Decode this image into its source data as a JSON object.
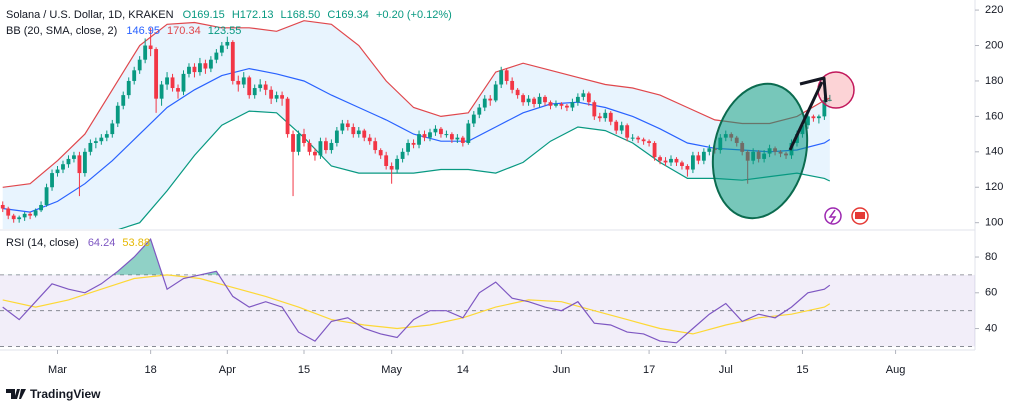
{
  "chart_data": {
    "type": "candlestick",
    "title": "Solana / U.S. Dollar, 1D, KRAKEN",
    "legend": {
      "open": "O169.15",
      "high": "H172.13",
      "low": "L168.50",
      "close": "C169.34",
      "change": "+0.20 (+0.12%)"
    },
    "up_color": "#089981",
    "down_color": "#f23645",
    "xlim": [
      -0.5,
      177.5
    ],
    "ylim": [
      97,
      224
    ],
    "yticks": [
      100,
      120,
      140,
      160,
      180,
      200,
      220
    ],
    "xticks": [
      {
        "value": 10,
        "label": "Mar"
      },
      {
        "value": 27,
        "label": "18"
      },
      {
        "value": 41,
        "label": "Apr"
      },
      {
        "value": 55,
        "label": "15"
      },
      {
        "value": 71,
        "label": "May"
      },
      {
        "value": 84,
        "label": "14"
      },
      {
        "value": 102,
        "label": "Jun"
      },
      {
        "value": 118,
        "label": "17"
      },
      {
        "value": 132,
        "label": "Jul"
      },
      {
        "value": 146,
        "label": "15"
      },
      {
        "value": 163,
        "label": "Aug"
      }
    ],
    "ohlc": [
      [
        110,
        112,
        106,
        108
      ],
      [
        108,
        109,
        102,
        104
      ],
      [
        104,
        105,
        100,
        102
      ],
      [
        102,
        104,
        100,
        103
      ],
      [
        103,
        106,
        101,
        105
      ],
      [
        105,
        106,
        102,
        104
      ],
      [
        104,
        108,
        103,
        107
      ],
      [
        107,
        112,
        106,
        110
      ],
      [
        110,
        122,
        109,
        120
      ],
      [
        120,
        130,
        118,
        128
      ],
      [
        128,
        132,
        126,
        130
      ],
      [
        130,
        135,
        128,
        133
      ],
      [
        133,
        138,
        131,
        136
      ],
      [
        136,
        140,
        134,
        138
      ],
      [
        138,
        140,
        115,
        128
      ],
      [
        128,
        142,
        126,
        140
      ],
      [
        140,
        147,
        138,
        145
      ],
      [
        145,
        148,
        142,
        146
      ],
      [
        146,
        150,
        144,
        148
      ],
      [
        148,
        152,
        146,
        150
      ],
      [
        150,
        158,
        148,
        156
      ],
      [
        156,
        168,
        154,
        166
      ],
      [
        166,
        174,
        164,
        172
      ],
      [
        172,
        182,
        170,
        180
      ],
      [
        180,
        188,
        178,
        186
      ],
      [
        186,
        194,
        184,
        192
      ],
      [
        192,
        204,
        190,
        200
      ],
      [
        200,
        210,
        194,
        198
      ],
      [
        198,
        199,
        162,
        170
      ],
      [
        170,
        180,
        166,
        178
      ],
      [
        178,
        185,
        175,
        182
      ],
      [
        182,
        184,
        174,
        176
      ],
      [
        176,
        178,
        170,
        174
      ],
      [
        174,
        186,
        172,
        184
      ],
      [
        184,
        190,
        182,
        188
      ],
      [
        188,
        190,
        182,
        185
      ],
      [
        185,
        193,
        183,
        190
      ],
      [
        190,
        192,
        184,
        187
      ],
      [
        187,
        194,
        185,
        192
      ],
      [
        192,
        198,
        190,
        196
      ],
      [
        196,
        202,
        194,
        200
      ],
      [
        200,
        205,
        198,
        202
      ],
      [
        202,
        203,
        178,
        180
      ],
      [
        180,
        183,
        174,
        178
      ],
      [
        178,
        185,
        176,
        182
      ],
      [
        182,
        183,
        170,
        172
      ],
      [
        172,
        178,
        170,
        176
      ],
      [
        176,
        181,
        174,
        178
      ],
      [
        178,
        180,
        172,
        175
      ],
      [
        175,
        177,
        167,
        170
      ],
      [
        170,
        174,
        168,
        172
      ],
      [
        172,
        174,
        166,
        170
      ],
      [
        170,
        171,
        148,
        150
      ],
      [
        150,
        152,
        115,
        140
      ],
      [
        140,
        152,
        138,
        150
      ],
      [
        150,
        153,
        143,
        145
      ],
      [
        145,
        147,
        138,
        140
      ],
      [
        140,
        142,
        135,
        138
      ],
      [
        138,
        148,
        136,
        146
      ],
      [
        146,
        148,
        139,
        141
      ],
      [
        141,
        147,
        139,
        145
      ],
      [
        145,
        154,
        143,
        152
      ],
      [
        152,
        158,
        150,
        156
      ],
      [
        156,
        158,
        152,
        154
      ],
      [
        154,
        156,
        148,
        150
      ],
      [
        150,
        154,
        148,
        152
      ],
      [
        152,
        153,
        146,
        148
      ],
      [
        148,
        150,
        144,
        146
      ],
      [
        146,
        148,
        139,
        141
      ],
      [
        141,
        142,
        136,
        138
      ],
      [
        138,
        140,
        130,
        132
      ],
      [
        132,
        134,
        122,
        130
      ],
      [
        130,
        138,
        128,
        136
      ],
      [
        136,
        142,
        134,
        140
      ],
      [
        140,
        147,
        138,
        145
      ],
      [
        145,
        147,
        142,
        144
      ],
      [
        144,
        152,
        142,
        150
      ],
      [
        150,
        152,
        146,
        148
      ],
      [
        148,
        153,
        146,
        151
      ],
      [
        151,
        155,
        149,
        153
      ],
      [
        153,
        154,
        148,
        150
      ],
      [
        150,
        152,
        148,
        150
      ],
      [
        150,
        151,
        145,
        147
      ],
      [
        147,
        150,
        145,
        148
      ],
      [
        148,
        149,
        143,
        145
      ],
      [
        145,
        158,
        144,
        156
      ],
      [
        156,
        163,
        154,
        161
      ],
      [
        161,
        167,
        159,
        165
      ],
      [
        165,
        172,
        163,
        170
      ],
      [
        170,
        172,
        166,
        169
      ],
      [
        169,
        180,
        168,
        178
      ],
      [
        178,
        188,
        176,
        186
      ],
      [
        186,
        187,
        178,
        180
      ],
      [
        180,
        182,
        173,
        175
      ],
      [
        175,
        176,
        170,
        172
      ],
      [
        172,
        173,
        166,
        168
      ],
      [
        168,
        172,
        166,
        170
      ],
      [
        170,
        171,
        165,
        167
      ],
      [
        167,
        173,
        165,
        171
      ],
      [
        171,
        172,
        166,
        168
      ],
      [
        168,
        169,
        164,
        166
      ],
      [
        166,
        169,
        165,
        167
      ],
      [
        167,
        168,
        164,
        166
      ],
      [
        166,
        167,
        163,
        165
      ],
      [
        165,
        170,
        163,
        168
      ],
      [
        168,
        173,
        166,
        171
      ],
      [
        171,
        175,
        169,
        173
      ],
      [
        173,
        174,
        166,
        168
      ],
      [
        168,
        169,
        158,
        160
      ],
      [
        160,
        162,
        157,
        159
      ],
      [
        159,
        164,
        157,
        162
      ],
      [
        162,
        163,
        155,
        157
      ],
      [
        157,
        158,
        150,
        152
      ],
      [
        152,
        157,
        150,
        155
      ],
      [
        155,
        156,
        146,
        148
      ],
      [
        148,
        150,
        146,
        148
      ],
      [
        148,
        149,
        145,
        147
      ],
      [
        147,
        148,
        144,
        146
      ],
      [
        146,
        147,
        143,
        145
      ],
      [
        145,
        146,
        135,
        137
      ],
      [
        137,
        138,
        133,
        135
      ],
      [
        135,
        137,
        132,
        134
      ],
      [
        134,
        138,
        132,
        136
      ],
      [
        136,
        137,
        132,
        134
      ],
      [
        134,
        135,
        130,
        132
      ],
      [
        132,
        133,
        126,
        130
      ],
      [
        130,
        140,
        128,
        138
      ],
      [
        138,
        140,
        133,
        135
      ],
      [
        135,
        142,
        133,
        140
      ],
      [
        140,
        144,
        138,
        142
      ],
      [
        142,
        144,
        139,
        141
      ],
      [
        141,
        150,
        139,
        148
      ],
      [
        148,
        152,
        146,
        150
      ],
      [
        150,
        151,
        146,
        148
      ],
      [
        148,
        149,
        143,
        145
      ],
      [
        145,
        146,
        138,
        140
      ],
      [
        140,
        141,
        122,
        135
      ],
      [
        135,
        142,
        133,
        140
      ],
      [
        140,
        141,
        134,
        136
      ],
      [
        136,
        141,
        134,
        139
      ],
      [
        139,
        144,
        137,
        142
      ],
      [
        142,
        143,
        138,
        140
      ],
      [
        140,
        141,
        137,
        139
      ],
      [
        139,
        140,
        136,
        138
      ],
      [
        138,
        147,
        136,
        145
      ],
      [
        145,
        152,
        143,
        150
      ],
      [
        150,
        157,
        148,
        155
      ],
      [
        155,
        162,
        153,
        160
      ],
      [
        160,
        161,
        157,
        159
      ],
      [
        159,
        161,
        156,
        160
      ],
      [
        160,
        171,
        158,
        169.14
      ],
      [
        169.15,
        172.13,
        168.5,
        169.34
      ]
    ],
    "bb": {
      "label": "BB (20, SMA, close, 2)",
      "legend_values": [
        146.95,
        170.34,
        123.55
      ],
      "fill": "rgba(33,150,243,0.10)",
      "x": [
        0,
        5,
        10,
        15,
        20,
        25,
        30,
        35,
        40,
        45,
        50,
        55,
        60,
        65,
        70,
        75,
        80,
        85,
        90,
        95,
        100,
        105,
        110,
        115,
        120,
        125,
        130,
        135,
        140,
        145,
        150,
        151
      ],
      "basis": {
        "color": "#2962ff",
        "values": [
          108,
          106,
          112,
          122,
          135,
          150,
          165,
          175,
          183,
          187,
          184,
          180,
          172,
          165,
          158,
          150,
          146,
          146,
          154,
          162,
          167,
          168,
          165,
          160,
          153,
          145,
          142,
          141,
          140,
          141,
          145,
          146.95
        ]
      },
      "upper": {
        "color": "#e0474c",
        "values": [
          120,
          122,
          135,
          150,
          175,
          200,
          212,
          213,
          210,
          210,
          208,
          214,
          212,
          200,
          180,
          165,
          160,
          162,
          185,
          190,
          186,
          182,
          178,
          176,
          172,
          165,
          158,
          156,
          156,
          160,
          169,
          170.34
        ]
      },
      "lower": {
        "color": "#089981",
        "values": [
          96,
          92,
          88,
          90,
          95,
          100,
          118,
          138,
          155,
          163,
          162,
          148,
          132,
          128,
          128,
          128,
          130,
          130,
          128,
          134,
          146,
          154,
          152,
          145,
          134,
          125,
          125,
          124,
          126,
          128,
          125,
          123.55
        ]
      }
    },
    "rsi": {
      "label": "RSI (14, close)",
      "legend_values": [
        64.24,
        53.88
      ],
      "ylim": [
        28,
        94
      ],
      "yticks": [
        40,
        60,
        80
      ],
      "levels": [
        70,
        50,
        30
      ],
      "color": "#7e57c2",
      "x": [
        0,
        3,
        6,
        9,
        12,
        15,
        18,
        21,
        24,
        27,
        30,
        33,
        36,
        39,
        42,
        45,
        48,
        51,
        54,
        57,
        60,
        63,
        66,
        69,
        72,
        75,
        78,
        81,
        84,
        87,
        90,
        93,
        96,
        99,
        102,
        105,
        108,
        111,
        114,
        117,
        120,
        123,
        126,
        129,
        132,
        135,
        138,
        141,
        144,
        147,
        150,
        151
      ],
      "values": [
        52,
        45,
        55,
        65,
        62,
        60,
        65,
        72,
        80,
        90,
        62,
        68,
        70,
        72,
        58,
        52,
        55,
        52,
        38,
        33,
        44,
        46,
        40,
        37,
        35,
        45,
        50,
        50,
        46,
        60,
        66,
        57,
        55,
        52,
        50,
        55,
        43,
        42,
        38,
        37,
        33,
        32,
        40,
        48,
        54,
        44,
        48,
        46,
        52,
        60,
        62,
        64.24
      ],
      "ma": {
        "color": "#fdd835",
        "x": [
          0,
          6,
          12,
          18,
          24,
          30,
          36,
          42,
          48,
          54,
          60,
          66,
          72,
          78,
          84,
          90,
          96,
          102,
          108,
          114,
          120,
          126,
          132,
          138,
          144,
          150,
          151
        ],
        "values": [
          56,
          52,
          56,
          62,
          68,
          70,
          68,
          63,
          58,
          52,
          45,
          42,
          40,
          42,
          46,
          52,
          56,
          55,
          50,
          45,
          40,
          37,
          42,
          46,
          48,
          52,
          53.88
        ]
      }
    },
    "footer": {
      "brand": "TradingView"
    }
  }
}
